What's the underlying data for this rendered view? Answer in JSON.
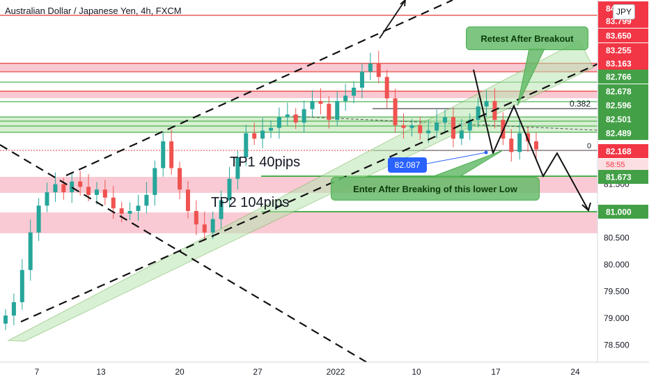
{
  "header": {
    "title": "Australian Dollar / Japanese Yen, 4h, FXCM",
    "currency": "JPY"
  },
  "annotations": {
    "retest": "Retest After Breakout",
    "enter": "Enter After Breaking of this lower Low",
    "tp1": "TP1 40pips",
    "tp2": "TP2 104pips",
    "point_value": "82.087",
    "fib_382": "0.382",
    "fib_0": "0"
  },
  "colors": {
    "bull": "#26a69a",
    "bear": "#ef5350",
    "channel_fill": "#b9e4b0",
    "pink_zone": "#f8c4cf",
    "green_line": "#4caf50",
    "red_line": "#e53935"
  },
  "chart_data": {
    "type": "candlestick",
    "title": "Australian Dollar / Japanese Yen, 4h, FXCM",
    "xlabel": "",
    "ylabel": "",
    "ylim": [
      78.2,
      84.3
    ],
    "x_tick_labels": [
      "7",
      "13",
      "20",
      "27",
      "2022",
      "10",
      "17",
      "24"
    ],
    "y_tick_labels": [
      "78.500",
      "79.000",
      "79.500",
      "80.000",
      "80.500",
      "81.500"
    ],
    "y_tick_values": [
      78.5,
      79.0,
      79.5,
      80.0,
      80.5,
      81.5
    ],
    "price_tags": [
      {
        "label": "84.100",
        "value": 84.1,
        "color": "#f23645"
      },
      {
        "label": "83.799",
        "value": 83.799,
        "color": "#f23645"
      },
      {
        "label": "83.650",
        "value": 83.65,
        "color": "#f23645"
      },
      {
        "label": "83.255",
        "value": 83.255,
        "color": "#f23645"
      },
      {
        "label": "83.163",
        "value": 83.163,
        "color": "#f23645"
      },
      {
        "label": "82.766",
        "value": 82.766,
        "color": "#43a047"
      },
      {
        "label": "82.678",
        "value": 82.678,
        "color": "#43a047"
      },
      {
        "label": "82.596",
        "value": 82.596,
        "color": "#43a047"
      },
      {
        "label": "82.501",
        "value": 82.501,
        "color": "#43a047"
      },
      {
        "label": "82.489",
        "value": 82.489,
        "color": "#43a047"
      },
      {
        "label": "82.168",
        "value": 82.168,
        "color": "#f23645"
      },
      {
        "label": "81.673",
        "value": 81.673,
        "color": "#43a047"
      },
      {
        "label": "81.000",
        "value": 81.0,
        "color": "#43a047"
      }
    ],
    "countdown": "58:55",
    "last_price": 82.168,
    "close_series": [
      79.05,
      79.3,
      79.9,
      80.6,
      81.1,
      81.35,
      81.5,
      81.35,
      81.55,
      81.45,
      81.3,
      81.4,
      81.25,
      81.05,
      80.95,
      81.0,
      81.1,
      81.3,
      81.8,
      82.3,
      81.8,
      81.4,
      81.0,
      80.75,
      80.6,
      80.85,
      81.2,
      81.6,
      82.0,
      82.45,
      82.35,
      82.5,
      82.55,
      82.75,
      82.8,
      82.65,
      82.9,
      83.05,
      83.0,
      82.7,
      83.05,
      83.15,
      83.3,
      83.6,
      83.75,
      83.5,
      83.1,
      82.6,
      82.55,
      82.6,
      82.45,
      82.5,
      82.65,
      82.75,
      82.35,
      82.5,
      82.7,
      82.95,
      83.05,
      82.7,
      82.35,
      82.1,
      82.45,
      82.3,
      82.15
    ]
  }
}
